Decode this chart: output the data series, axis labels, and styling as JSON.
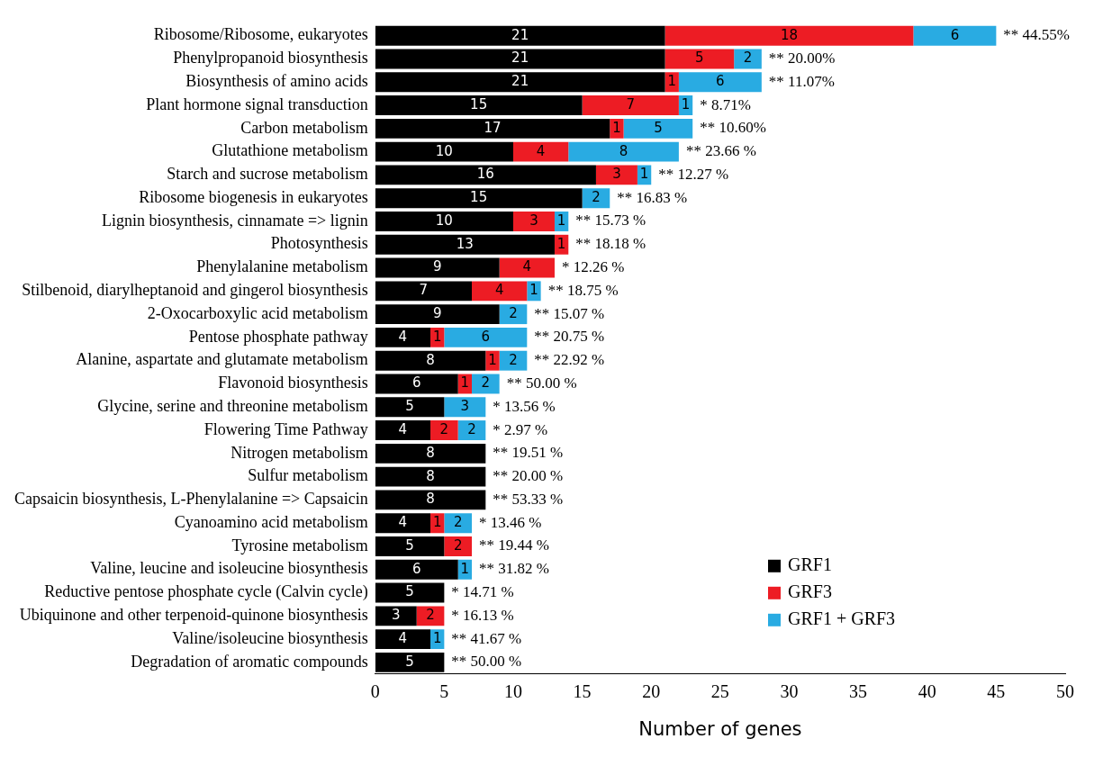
{
  "chart_data": {
    "type": "bar",
    "orientation": "horizontal",
    "stacked": true,
    "xlabel": "Number of genes",
    "categories": [
      "Ribosome/Ribosome, eukaryotes",
      "Phenylpropanoid biosynthesis",
      "Biosynthesis of amino acids",
      "Plant hormone signal transduction",
      "Carbon metabolism",
      "Glutathione metabolism",
      "Starch and sucrose metabolism",
      "Ribosome biogenesis in eukaryotes",
      "Lignin biosynthesis, cinnamate => lignin",
      "Photosynthesis",
      "Phenylalanine metabolism",
      "Stilbenoid, diarylheptanoid and gingerol biosynthesis",
      "2-Oxocarboxylic acid metabolism",
      "Pentose phosphate pathway",
      "Alanine, aspartate and glutamate metabolism",
      "Flavonoid biosynthesis",
      "Glycine, serine and threonine metabolism",
      "Flowering Time Pathway",
      "Nitrogen metabolism",
      "Sulfur metabolism",
      "Capsaicin biosynthesis, L-Phenylalanine => Capsaicin",
      "Cyanoamino acid metabolism",
      "Tyrosine metabolism",
      "Valine, leucine and isoleucine biosynthesis",
      "Reductive pentose phosphate cycle (Calvin cycle)",
      "Ubiquinone and other terpenoid-quinone biosynthesis",
      "Valine/isoleucine biosynthesis",
      "Degradation of aromatic compounds"
    ],
    "series": [
      {
        "name": "GRF1",
        "color": "#000000",
        "values": [
          21,
          21,
          21,
          15,
          17,
          10,
          16,
          15,
          10,
          13,
          9,
          7,
          9,
          4,
          8,
          6,
          5,
          4,
          8,
          8,
          8,
          4,
          5,
          6,
          5,
          3,
          4,
          5
        ]
      },
      {
        "name": "GRF3",
        "color": "#ed1c24",
        "values": [
          18,
          5,
          1,
          7,
          1,
          4,
          3,
          null,
          3,
          1,
          4,
          4,
          null,
          1,
          1,
          1,
          null,
          2,
          null,
          null,
          null,
          1,
          2,
          null,
          null,
          2,
          null,
          null
        ]
      },
      {
        "name": "GRF1 + GRF3",
        "color": "#29abe2",
        "values": [
          6,
          2,
          6,
          1,
          5,
          8,
          1,
          2,
          1,
          null,
          null,
          1,
          2,
          6,
          2,
          2,
          3,
          2,
          null,
          null,
          null,
          2,
          null,
          1,
          null,
          null,
          1,
          null
        ]
      }
    ],
    "data_labels": true,
    "annotations": [
      {
        "text": "** 44.55%",
        "x": 45,
        "y": "Ribosome/Ribosome, eukaryotes"
      },
      {
        "text": "** 20.00%",
        "x": 28,
        "y": "Phenylpropanoid biosynthesis"
      },
      {
        "text": "** 11.07%",
        "x": 28,
        "y": "Biosynthesis of amino acids"
      },
      {
        "text": "* 8.71%",
        "x": 23,
        "y": "Plant hormone signal transduction"
      },
      {
        "text": "** 10.60%",
        "x": 23,
        "y": "Carbon metabolism"
      },
      {
        "text": "** 23.66 %",
        "x": 22,
        "y": "Glutathione metabolism"
      },
      {
        "text": "** 12.27 %",
        "x": 20,
        "y": "Starch and sucrose metabolism"
      },
      {
        "text": "** 16.83 %",
        "x": 17,
        "y": "Ribosome biogenesis in eukaryotes"
      },
      {
        "text": "** 15.73 %",
        "x": 14,
        "y": "Lignin biosynthesis, cinnamate => lignin"
      },
      {
        "text": "** 18.18 %",
        "x": 14,
        "y": "Photosynthesis"
      },
      {
        "text": "* 12.26 %",
        "x": 13,
        "y": "Phenylalanine metabolism"
      },
      {
        "text": "** 18.75 %",
        "x": 12,
        "y": "Stilbenoid, diarylheptanoid and gingerol biosynthesis"
      },
      {
        "text": "** 15.07 %",
        "x": 11,
        "y": "2-Oxocarboxylic acid metabolism"
      },
      {
        "text": "** 20.75 %",
        "x": 11,
        "y": "Pentose phosphate pathway"
      },
      {
        "text": "** 22.92 %",
        "x": 11,
        "y": "Alanine, aspartate and glutamate metabolism"
      },
      {
        "text": "** 50.00 %",
        "x": 9,
        "y": "Flavonoid biosynthesis"
      },
      {
        "text": "* 13.56 %",
        "x": 8,
        "y": "Glycine, serine and threonine metabolism"
      },
      {
        "text": "* 2.97 %",
        "x": 8,
        "y": "Flowering Time Pathway"
      },
      {
        "text": "** 19.51 %",
        "x": 8,
        "y": "Nitrogen metabolism"
      },
      {
        "text": "** 20.00 %",
        "x": 8,
        "y": "Sulfur metabolism"
      },
      {
        "text": "** 53.33 %",
        "x": 8,
        "y": "Capsaicin biosynthesis, L-Phenylalanine => Capsaicin"
      },
      {
        "text": "* 13.46 %",
        "x": 7,
        "y": "Cyanoamino acid metabolism"
      },
      {
        "text": "** 19.44 %",
        "x": 7,
        "y": "Tyrosine metabolism"
      },
      {
        "text": "** 31.82 %",
        "x": 7,
        "y": "Valine, leucine and isoleucine biosynthesis"
      },
      {
        "text": "* 14.71 %",
        "x": 5,
        "y": "Reductive pentose phosphate cycle (Calvin cycle)"
      },
      {
        "text": "* 16.13 %",
        "x": 5,
        "y": "Ubiquinone and other terpenoid-quinone biosynthesis"
      },
      {
        "text": "** 41.67 %",
        "x": 5,
        "y": "Valine/isoleucine biosynthesis"
      },
      {
        "text": "** 50.00 %",
        "x": 5,
        "y": "Degradation of aromatic compounds"
      }
    ],
    "xlim": [
      0,
      50
    ],
    "xticks": [
      0,
      5,
      10,
      15,
      20,
      25,
      30,
      35,
      40,
      45,
      50
    ],
    "grid": false,
    "legend": "bottom right"
  }
}
